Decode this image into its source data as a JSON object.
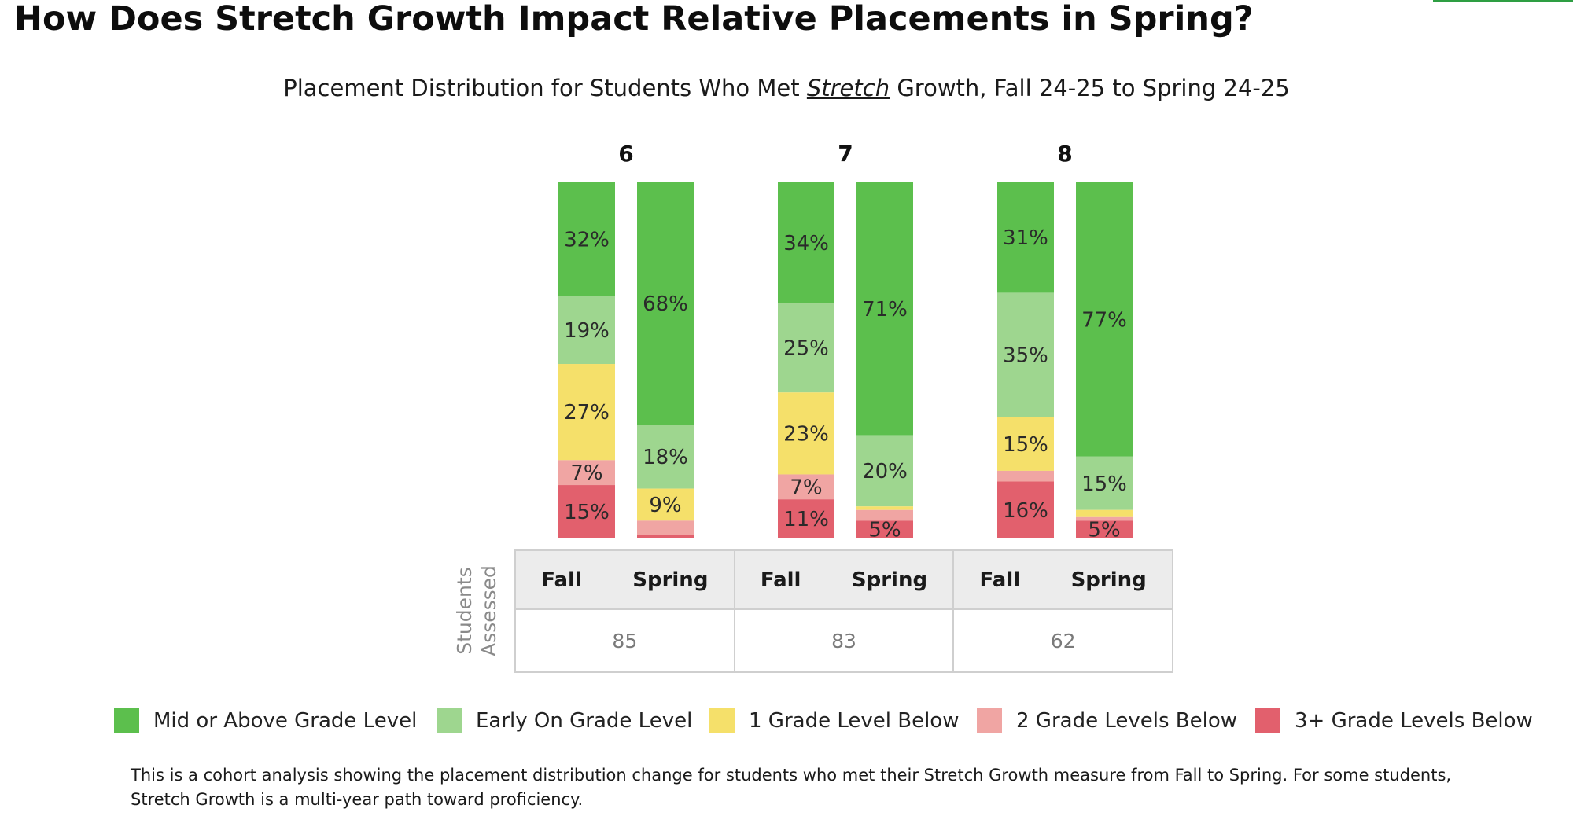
{
  "page": {
    "title": "How Does Stretch Growth Impact Relative Placements in Spring?",
    "footnote": "This is a cohort analysis showing the placement distribution change for students who met their Stretch Growth measure from Fall to Spring. For some students, Stretch Growth is a multi-year path toward proficiency."
  },
  "colors": {
    "accent_line": "#2e9e43",
    "mid_or_above": "#5cbf4d",
    "early_on": "#9ed68f",
    "one_below": "#f5e06a",
    "two_below": "#f0a5a3",
    "three_below": "#e2606d"
  },
  "chart_data": {
    "type": "bar",
    "stacked": true,
    "title_parts": {
      "before": "Placement Distribution for Students Who Met ",
      "emphasis": "Stretch",
      "after": " Growth, Fall 24-25 to Spring 24-25"
    },
    "series_order": [
      "Mid or Above Grade Level",
      "Early On Grade Level",
      "1 Grade Level Below",
      "2 Grade Levels Below",
      "3+ Grade Levels Below"
    ],
    "series_colors": [
      "#5cbf4d",
      "#9ed68f",
      "#f5e06a",
      "#f0a5a3",
      "#e2606d"
    ],
    "groups": [
      {
        "grade": "6",
        "students_assessed": "85",
        "bars": [
          {
            "term": "Fall",
            "values": [
              32,
              19,
              27,
              7,
              15
            ],
            "labels": [
              "32%",
              "19%",
              "27%",
              "7%",
              "15%"
            ]
          },
          {
            "term": "Spring",
            "values": [
              68,
              18,
              9,
              4,
              1
            ],
            "labels": [
              "68%",
              "18%",
              "9%",
              "",
              ""
            ]
          }
        ]
      },
      {
        "grade": "7",
        "students_assessed": "83",
        "bars": [
          {
            "term": "Fall",
            "values": [
              34,
              25,
              23,
              7,
              11
            ],
            "labels": [
              "34%",
              "25%",
              "23%",
              "7%",
              "11%"
            ]
          },
          {
            "term": "Spring",
            "values": [
              71,
              20,
              1,
              3,
              5
            ],
            "labels": [
              "71%",
              "20%",
              "",
              "",
              "5%"
            ]
          }
        ]
      },
      {
        "grade": "8",
        "students_assessed": "62",
        "bars": [
          {
            "term": "Fall",
            "values": [
              31,
              35,
              15,
              3,
              16
            ],
            "labels": [
              "31%",
              "35%",
              "15%",
              "",
              "16%"
            ]
          },
          {
            "term": "Spring",
            "values": [
              77,
              15,
              2,
              1,
              5
            ],
            "labels": [
              "77%",
              "15%",
              "",
              "",
              "5%"
            ]
          }
        ]
      }
    ],
    "ylim": [
      0,
      100
    ],
    "grid": false,
    "legend": {
      "position": "bottom",
      "entries": [
        "Mid or Above Grade Level",
        "Early On Grade Level",
        "1 Grade Level Below",
        "2 Grade Levels Below",
        "3+ Grade Levels Below"
      ]
    }
  },
  "table": {
    "row_label_line1": "Students",
    "row_label_line2": "Assessed",
    "fall_label": "Fall",
    "spring_label": "Spring"
  }
}
